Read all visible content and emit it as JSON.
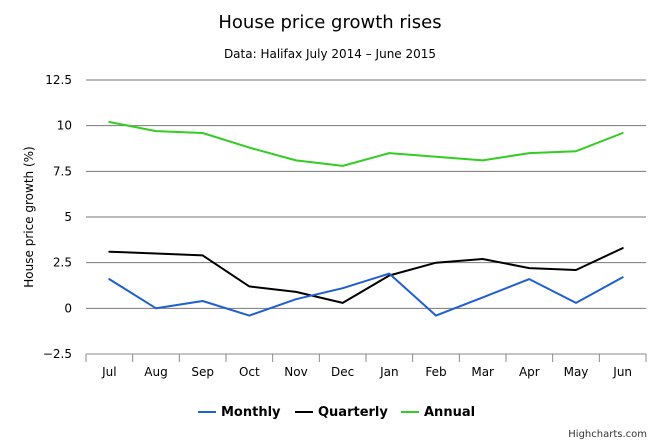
{
  "chart_data": {
    "type": "line",
    "title": "House price growth rises",
    "subtitle": "Data: Halifax July 2014 – June 2015",
    "ylabel": "House price growth (%)",
    "categories": [
      "Jul",
      "Aug",
      "Sep",
      "Oct",
      "Nov",
      "Dec",
      "Jan",
      "Feb",
      "Mar",
      "Apr",
      "May",
      "Jun"
    ],
    "ylim": [
      -2.5,
      12.5
    ],
    "yticks": [
      -2.5,
      0,
      2.5,
      5,
      7.5,
      10,
      12.5
    ],
    "ytick_labels": [
      "−2.5",
      "0",
      "2.5",
      "5",
      "7.5",
      "10",
      "12.5"
    ],
    "grid": true,
    "legend_position": "bottom",
    "series": [
      {
        "name": "Monthly",
        "color": "#1f5fcf",
        "values": [
          1.6,
          0.0,
          0.4,
          -0.4,
          0.5,
          1.1,
          1.9,
          -0.4,
          0.6,
          1.6,
          0.3,
          1.7
        ]
      },
      {
        "name": "Quarterly",
        "color": "#000000",
        "values": [
          3.1,
          3.0,
          2.9,
          1.2,
          0.9,
          0.3,
          1.8,
          2.5,
          2.7,
          2.2,
          2.1,
          3.3
        ]
      },
      {
        "name": "Annual",
        "color": "#33cc22",
        "values": [
          10.2,
          9.7,
          9.6,
          8.8,
          8.1,
          7.8,
          8.5,
          8.3,
          8.1,
          8.5,
          8.6,
          9.6
        ]
      }
    ]
  },
  "credits": "Highcharts.com"
}
